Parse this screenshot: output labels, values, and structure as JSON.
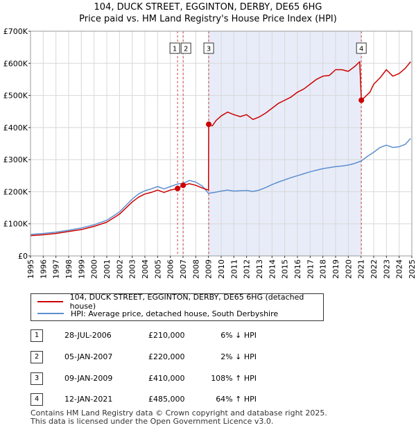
{
  "title_line1": "104, DUCK STREET, EGGINTON, DERBY, DE65 6HG",
  "title_line2": "Price paid vs. HM Land Registry's House Price Index (HPI)",
  "chart_data": {
    "type": "line",
    "title": "104, DUCK STREET, EGGINTON, DERBY, DE65 6HG - Price paid vs. HM Land Registry's House Price Index (HPI)",
    "xlim": [
      1995,
      2025
    ],
    "ylim": [
      0,
      700000
    ],
    "y_ticks": [
      0,
      100000,
      200000,
      300000,
      400000,
      500000,
      600000,
      700000
    ],
    "y_tick_labels": [
      "£0",
      "£100K",
      "£200K",
      "£300K",
      "£400K",
      "£500K",
      "£600K",
      "£700K"
    ],
    "x_ticks": [
      1995,
      1996,
      1997,
      1998,
      1999,
      2000,
      2001,
      2002,
      2003,
      2004,
      2005,
      2006,
      2007,
      2008,
      2009,
      2010,
      2011,
      2012,
      2013,
      2014,
      2015,
      2016,
      2017,
      2018,
      2019,
      2020,
      2021,
      2022,
      2023,
      2024,
      2025
    ],
    "x_tick_labels": [
      "1995",
      "1996",
      "1997",
      "1998",
      "1999",
      "2000",
      "2001",
      "2002",
      "2003",
      "2004",
      "2005",
      "2006",
      "2007",
      "2008",
      "2009",
      "2010",
      "2011",
      "2012",
      "2013",
      "2014",
      "2015",
      "2016",
      "2017",
      "2018",
      "2019",
      "2020",
      "2021",
      "2022",
      "2023",
      "2024",
      "2025"
    ],
    "grid": true,
    "shaded_ranges": [
      [
        2009.02,
        2021.03
      ]
    ],
    "series": [
      {
        "name": "104, DUCK STREET, EGGINTON, DERBY, DE65 6HG (detached house)",
        "color": "#cc0000",
        "x": [
          1995,
          1996,
          1997,
          1998,
          1999,
          2000,
          2001,
          2002,
          2003,
          2003.5,
          2004,
          2004.5,
          2005,
          2005.5,
          2006,
          2006.57,
          2007.01,
          2007.5,
          2008,
          2008.5,
          2009.0,
          2009.02,
          2009.3,
          2009.6,
          2010,
          2010.5,
          2011,
          2011.5,
          2012,
          2012.5,
          2013,
          2013.5,
          2014,
          2014.5,
          2015,
          2015.5,
          2016,
          2016.5,
          2017,
          2017.5,
          2018,
          2018.5,
          2019,
          2019.5,
          2020,
          2020.5,
          2020.9,
          2021.03,
          2021.3,
          2021.7,
          2022,
          2022.5,
          2023,
          2023.5,
          2024,
          2024.5,
          2024.9
        ],
        "y": [
          63000,
          66000,
          70000,
          76000,
          82000,
          92000,
          105000,
          130000,
          168000,
          183000,
          193000,
          198000,
          205000,
          198000,
          205000,
          210000,
          220000,
          225000,
          220000,
          212000,
          205000,
          410000,
          405000,
          422000,
          436000,
          448000,
          440000,
          434000,
          440000,
          425000,
          433000,
          445000,
          460000,
          475000,
          485000,
          495000,
          510000,
          520000,
          535000,
          550000,
          560000,
          562000,
          580000,
          580000,
          575000,
          590000,
          605000,
          485000,
          495000,
          510000,
          535000,
          555000,
          580000,
          560000,
          568000,
          585000,
          605000
        ]
      },
      {
        "name": "HPI: Average price, detached house, South Derbyshire",
        "color": "#5b8fcf",
        "x": [
          1995,
          1996,
          1997,
          1998,
          1999,
          2000,
          2001,
          2002,
          2003,
          2003.5,
          2004,
          2004.5,
          2005,
          2005.5,
          2006,
          2006.57,
          2007.01,
          2007.5,
          2008,
          2008.5,
          2009.0,
          2009.5,
          2010,
          2010.5,
          2011,
          2011.5,
          2012,
          2012.5,
          2013,
          2013.5,
          2014,
          2014.5,
          2015,
          2015.5,
          2016,
          2016.5,
          2017,
          2017.5,
          2018,
          2018.5,
          2019,
          2019.5,
          2020,
          2020.5,
          2021.03,
          2021.5,
          2022,
          2022.5,
          2023,
          2023.5,
          2024,
          2024.5,
          2024.9
        ],
        "y": [
          67000,
          70000,
          74000,
          80000,
          87000,
          97000,
          111000,
          137000,
          177000,
          193000,
          203000,
          209000,
          216000,
          209000,
          216000,
          224000,
          226000,
          235000,
          230000,
          218000,
          195000,
          198000,
          202000,
          205000,
          202000,
          203000,
          204000,
          201000,
          205000,
          213000,
          222000,
          230000,
          237000,
          244000,
          250000,
          256000,
          262000,
          267000,
          272000,
          275000,
          278000,
          280000,
          283000,
          288000,
          296000,
          310000,
          323000,
          338000,
          345000,
          338000,
          340000,
          348000,
          366000
        ]
      }
    ],
    "markers": [
      {
        "label": "1",
        "x": 2006.57,
        "y": 210000
      },
      {
        "label": "2",
        "x": 2007.01,
        "y": 220000
      },
      {
        "label": "3",
        "x": 2009.02,
        "y": 410000
      },
      {
        "label": "4",
        "x": 2021.03,
        "y": 485000
      }
    ]
  },
  "legend": [
    {
      "label": "104, DUCK STREET, EGGINTON, DERBY, DE65 6HG (detached house)",
      "color": "#cc0000"
    },
    {
      "label": "HPI: Average price, detached house, South Derbyshire",
      "color": "#5b8fcf"
    }
  ],
  "transactions": [
    {
      "num": "1",
      "date": "28-JUL-2006",
      "price": "£210,000",
      "hpi": "6% ↓ HPI"
    },
    {
      "num": "2",
      "date": "05-JAN-2007",
      "price": "£220,000",
      "hpi": "2% ↓ HPI"
    },
    {
      "num": "3",
      "date": "09-JAN-2009",
      "price": "£410,000",
      "hpi": "108% ↑ HPI"
    },
    {
      "num": "4",
      "date": "12-JAN-2021",
      "price": "£485,000",
      "hpi": "64% ↑ HPI"
    }
  ],
  "footer_line1": "Contains HM Land Registry data © Crown copyright and database right 2025.",
  "footer_line2": "This data is licensed under the Open Government Licence v3.0."
}
